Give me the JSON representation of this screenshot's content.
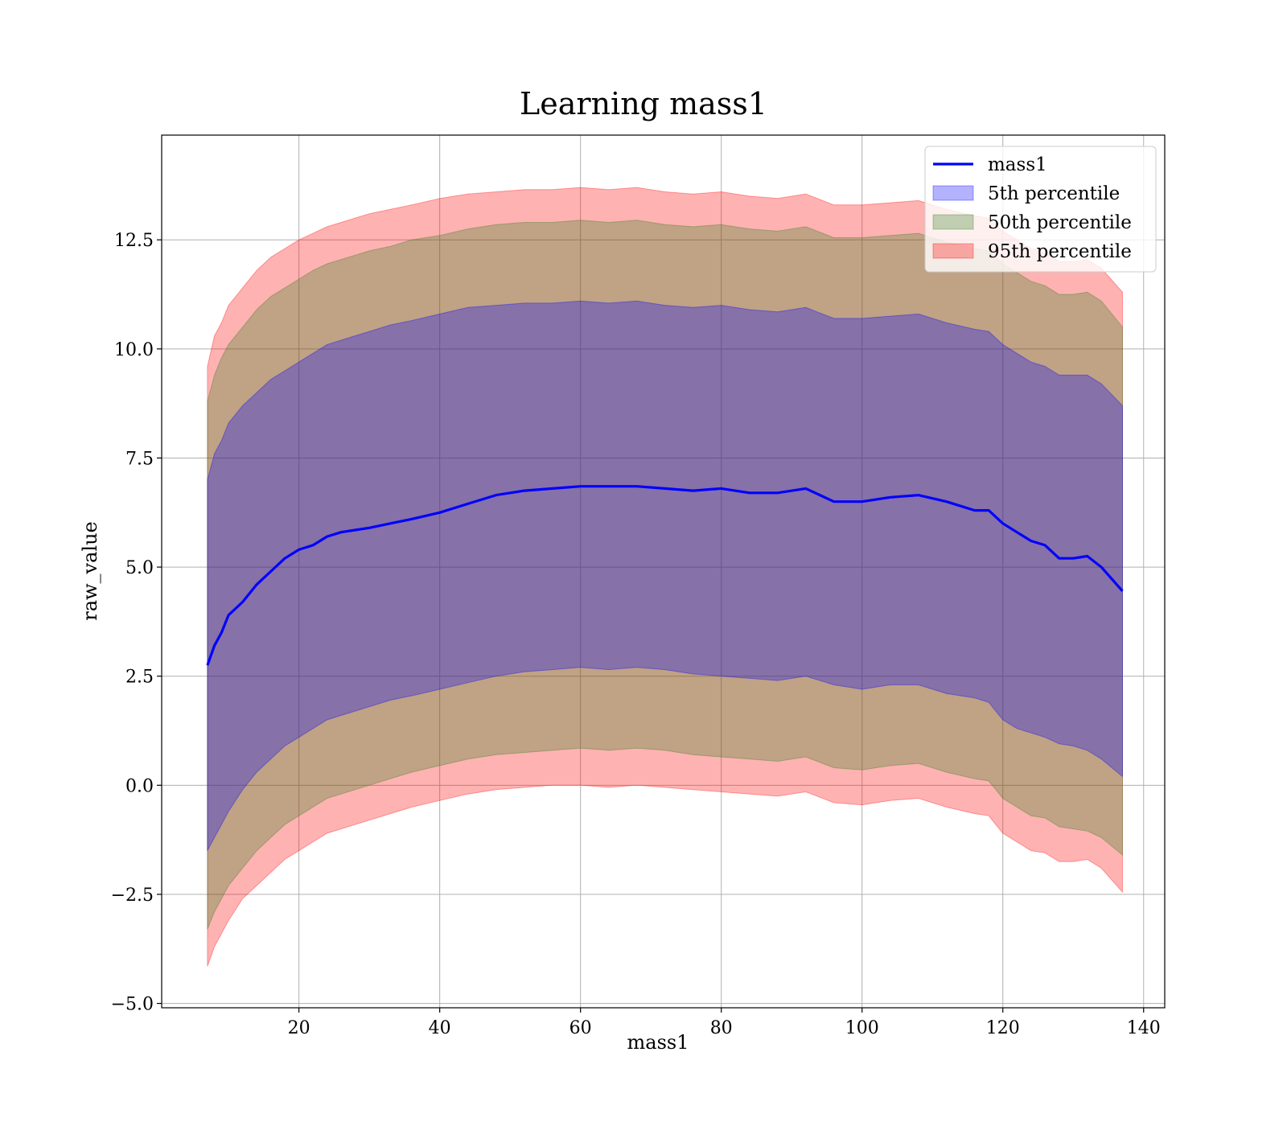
{
  "chart_data": {
    "type": "area",
    "title": "Learning mass1",
    "xlabel": "mass1",
    "ylabel": "raw_value",
    "xlim": [
      0.5,
      143
    ],
    "ylim": [
      -5.1,
      14.9
    ],
    "xticks": [
      20,
      40,
      60,
      80,
      100,
      120,
      140
    ],
    "yticks": [
      -5.0,
      -2.5,
      0.0,
      2.5,
      5.0,
      7.5,
      10.0,
      12.5
    ],
    "ytick_labels": [
      "−5.0",
      "−2.5",
      "0.0",
      "2.5",
      "5.0",
      "7.5",
      "10.0",
      "12.5"
    ],
    "grid": true,
    "legend_position": "top-right",
    "x": [
      7,
      8,
      9,
      10,
      12,
      14,
      16,
      18,
      20,
      22,
      24,
      26,
      28,
      30,
      33,
      36,
      40,
      44,
      48,
      52,
      56,
      60,
      64,
      68,
      72,
      76,
      80,
      84,
      88,
      92,
      96,
      100,
      104,
      108,
      112,
      116,
      118,
      120,
      122,
      124,
      126,
      128,
      130,
      132,
      134,
      137
    ],
    "series": [
      {
        "name": "mass1",
        "kind": "line",
        "color": "#0000ff",
        "values": [
          2.75,
          3.2,
          3.5,
          3.9,
          4.2,
          4.6,
          4.9,
          5.2,
          5.4,
          5.5,
          5.7,
          5.8,
          5.85,
          5.9,
          6.0,
          6.1,
          6.25,
          6.45,
          6.65,
          6.75,
          6.8,
          6.85,
          6.85,
          6.85,
          6.8,
          6.75,
          6.8,
          6.7,
          6.7,
          6.8,
          6.5,
          6.5,
          6.6,
          6.65,
          6.5,
          6.3,
          6.3,
          6.0,
          5.8,
          5.6,
          5.5,
          5.2,
          5.2,
          5.25,
          5.0,
          4.45
        ]
      },
      {
        "name": "5th percentile",
        "kind": "band",
        "color": "#0000ff",
        "lower": [
          -1.5,
          -1.2,
          -0.9,
          -0.6,
          -0.1,
          0.3,
          0.6,
          0.9,
          1.1,
          1.3,
          1.5,
          1.6,
          1.7,
          1.8,
          1.95,
          2.05,
          2.2,
          2.35,
          2.5,
          2.6,
          2.65,
          2.7,
          2.65,
          2.7,
          2.65,
          2.55,
          2.5,
          2.45,
          2.4,
          2.5,
          2.3,
          2.2,
          2.3,
          2.3,
          2.1,
          2.0,
          1.9,
          1.5,
          1.3,
          1.2,
          1.1,
          0.95,
          0.9,
          0.8,
          0.6,
          0.2
        ],
        "upper": [
          7.0,
          7.6,
          7.9,
          8.3,
          8.7,
          9.0,
          9.3,
          9.5,
          9.7,
          9.9,
          10.1,
          10.2,
          10.3,
          10.4,
          10.55,
          10.65,
          10.8,
          10.95,
          11.0,
          11.05,
          11.05,
          11.1,
          11.05,
          11.1,
          11.0,
          10.95,
          11.0,
          10.9,
          10.85,
          10.95,
          10.7,
          10.7,
          10.75,
          10.8,
          10.6,
          10.45,
          10.4,
          10.1,
          9.9,
          9.7,
          9.6,
          9.4,
          9.4,
          9.4,
          9.2,
          8.7
        ]
      },
      {
        "name": "50th percentile",
        "kind": "band",
        "color": "#2e7d1e",
        "lower": [
          -3.3,
          -2.9,
          -2.6,
          -2.3,
          -1.9,
          -1.5,
          -1.2,
          -0.9,
          -0.7,
          -0.5,
          -0.3,
          -0.2,
          -0.1,
          0.0,
          0.15,
          0.3,
          0.45,
          0.6,
          0.7,
          0.75,
          0.8,
          0.85,
          0.8,
          0.85,
          0.8,
          0.7,
          0.65,
          0.6,
          0.55,
          0.65,
          0.4,
          0.35,
          0.45,
          0.5,
          0.3,
          0.15,
          0.1,
          -0.3,
          -0.5,
          -0.7,
          -0.75,
          -0.95,
          -1.0,
          -1.05,
          -1.2,
          -1.6
        ],
        "upper": [
          8.8,
          9.4,
          9.8,
          10.1,
          10.5,
          10.9,
          11.2,
          11.4,
          11.6,
          11.8,
          11.95,
          12.05,
          12.15,
          12.25,
          12.35,
          12.5,
          12.6,
          12.75,
          12.85,
          12.9,
          12.9,
          12.95,
          12.9,
          12.95,
          12.85,
          12.8,
          12.85,
          12.75,
          12.7,
          12.8,
          12.55,
          12.55,
          12.6,
          12.65,
          12.45,
          12.3,
          12.25,
          11.95,
          11.75,
          11.55,
          11.45,
          11.25,
          11.25,
          11.3,
          11.1,
          10.5
        ]
      },
      {
        "name": "95th percentile",
        "kind": "band",
        "color": "#ff0000",
        "lower": [
          -4.15,
          -3.7,
          -3.4,
          -3.1,
          -2.6,
          -2.3,
          -2.0,
          -1.7,
          -1.5,
          -1.3,
          -1.1,
          -1.0,
          -0.9,
          -0.8,
          -0.65,
          -0.5,
          -0.35,
          -0.2,
          -0.1,
          -0.05,
          0.0,
          0.0,
          -0.05,
          0.0,
          -0.05,
          -0.1,
          -0.15,
          -0.2,
          -0.25,
          -0.15,
          -0.4,
          -0.45,
          -0.35,
          -0.3,
          -0.5,
          -0.65,
          -0.7,
          -1.1,
          -1.3,
          -1.5,
          -1.55,
          -1.75,
          -1.75,
          -1.7,
          -1.9,
          -2.45
        ],
        "upper": [
          9.6,
          10.3,
          10.6,
          11.0,
          11.4,
          11.8,
          12.1,
          12.3,
          12.5,
          12.65,
          12.8,
          12.9,
          13.0,
          13.1,
          13.2,
          13.3,
          13.45,
          13.55,
          13.6,
          13.65,
          13.65,
          13.7,
          13.65,
          13.7,
          13.6,
          13.55,
          13.6,
          13.5,
          13.45,
          13.55,
          13.3,
          13.3,
          13.35,
          13.4,
          13.2,
          13.05,
          13.0,
          12.7,
          12.5,
          12.3,
          12.2,
          12.0,
          12.0,
          12.05,
          11.85,
          11.3
        ]
      }
    ]
  }
}
